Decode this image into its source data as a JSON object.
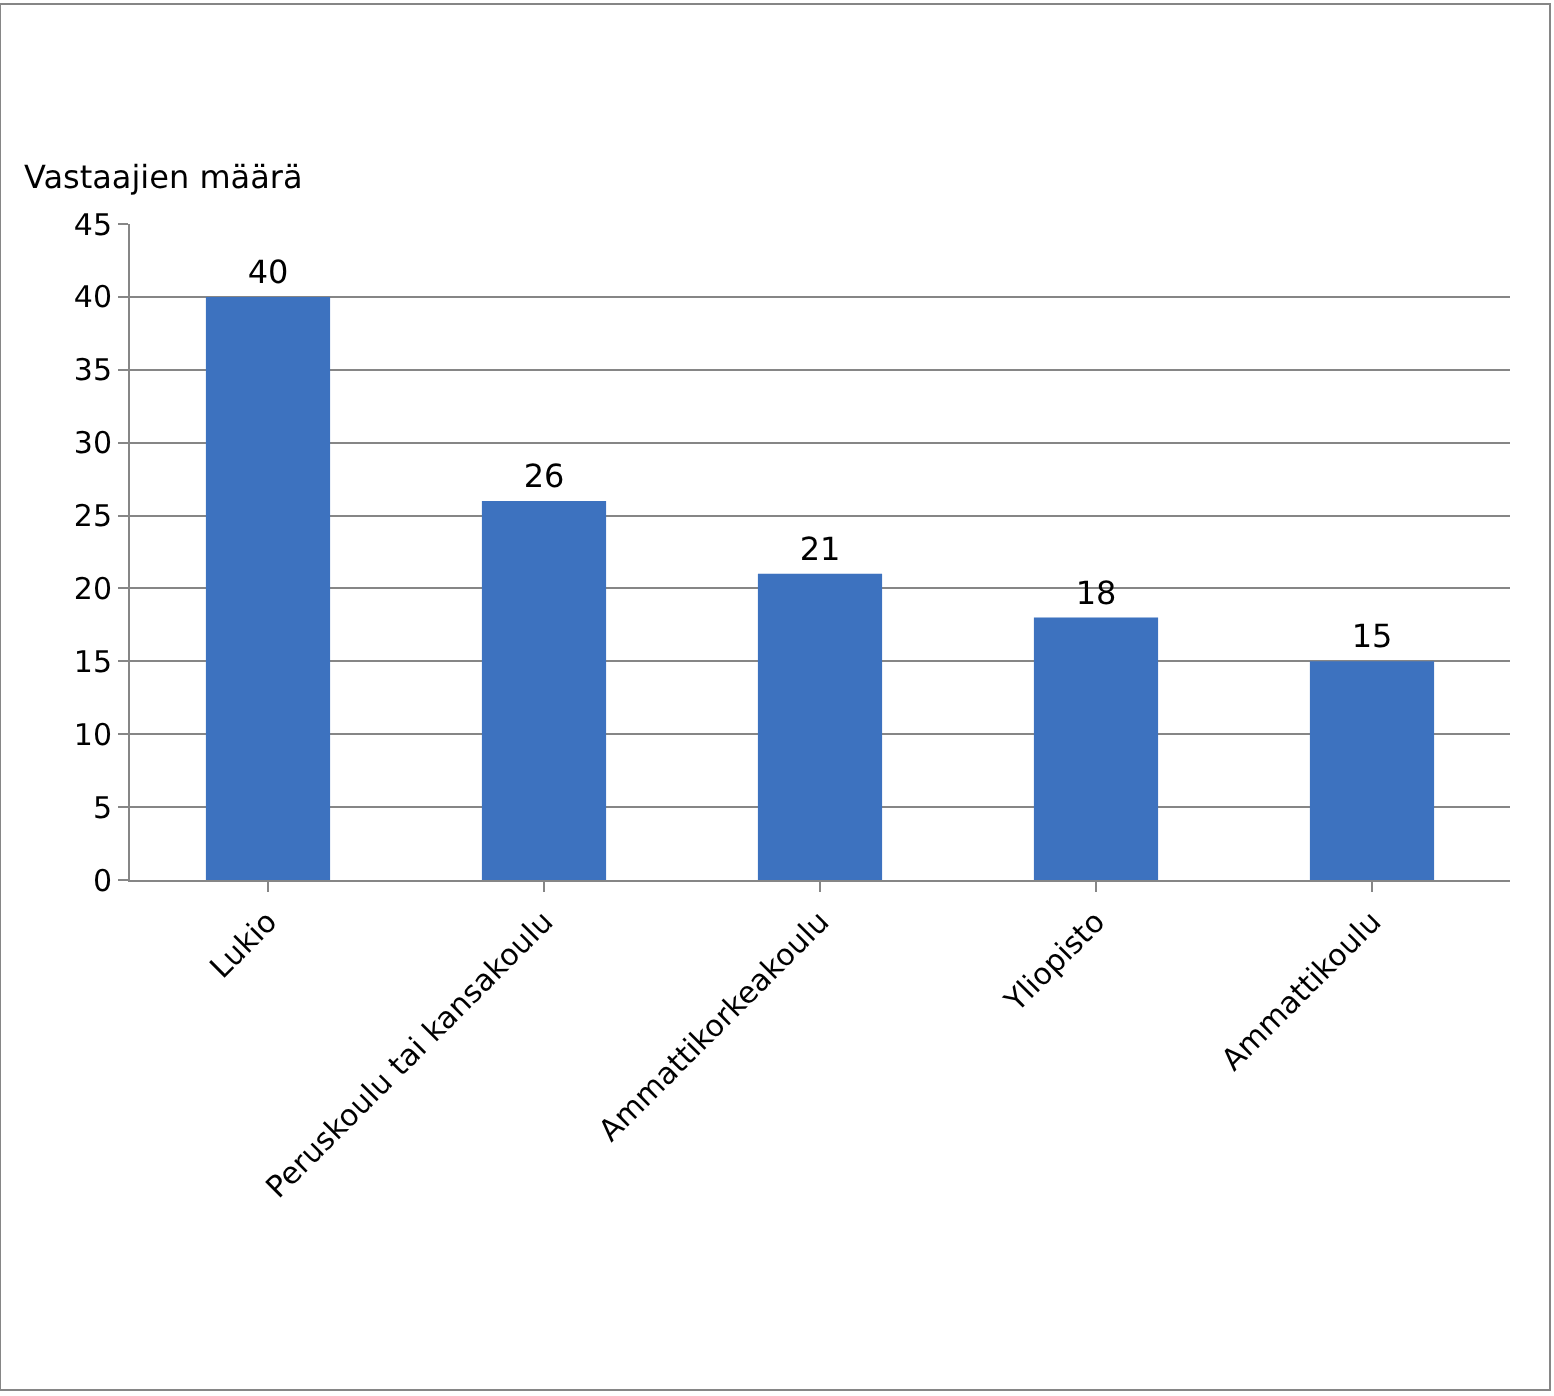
{
  "chart_data": {
    "type": "bar",
    "ylabel": "Vastaajien määrä",
    "categories": [
      "Lukio",
      "Peruskoulu tai kansakoulu",
      "Ammattikorkeakoulu",
      "Yliopisto",
      "Ammattikoulu"
    ],
    "values": [
      40,
      26,
      21,
      18,
      15
    ],
    "color": "#3d72bf",
    "ylim": [
      0,
      45
    ],
    "yticks": [
      0,
      5,
      10,
      15,
      20,
      25,
      30,
      35,
      40,
      45
    ],
    "grid": "y",
    "data_labels": true
  }
}
